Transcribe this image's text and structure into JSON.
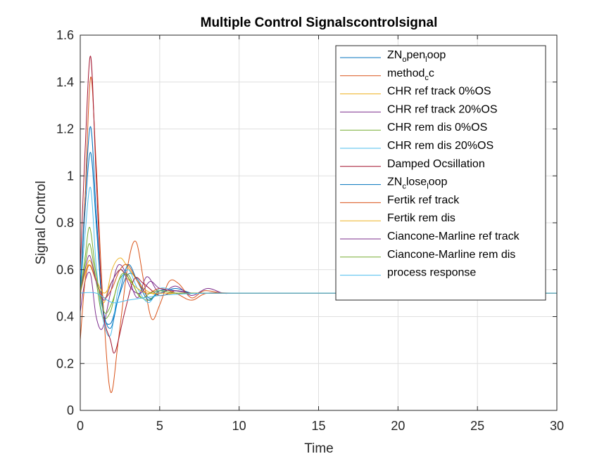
{
  "chart_data": {
    "type": "line",
    "title": "Multiple Control Signalscontrolsignal",
    "xlabel": "Time",
    "ylabel": "Signal Control",
    "xlim": [
      0,
      30
    ],
    "ylim": [
      0,
      1.6
    ],
    "xticks": [
      0,
      5,
      10,
      15,
      20,
      25,
      30
    ],
    "xtick_labels": [
      "0",
      "5",
      "10",
      "15",
      "20",
      "25",
      "30"
    ],
    "yticks": [
      0,
      0.2,
      0.4,
      0.6,
      0.8,
      1.0,
      1.2,
      1.4,
      1.6
    ],
    "ytick_labels": [
      "0",
      "0.2",
      "0.4",
      "0.6",
      "0.8",
      "1",
      "1.2",
      "1.4",
      "1.6"
    ],
    "grid": true,
    "legend_position": "top-right",
    "series": [
      {
        "name": "ZN_open_loop",
        "legend": {
          "main": "ZN",
          "sub1": "o",
          "mid": "pen",
          "sub2": "l",
          "tail": "oop"
        },
        "color": "#0072BD",
        "x": [
          0,
          0.3,
          0.65,
          1.0,
          1.4,
          1.9,
          2.4,
          3.0,
          3.6,
          4.3,
          5.0,
          6.0,
          7.0,
          8.0,
          10,
          15,
          30
        ],
        "y": [
          0.5,
          0.9,
          1.21,
          0.85,
          0.44,
          0.37,
          0.48,
          0.58,
          0.56,
          0.48,
          0.5,
          0.52,
          0.5,
          0.5,
          0.5,
          0.5,
          0.5
        ]
      },
      {
        "name": "method_cc",
        "legend": {
          "main": "method",
          "sub1": "c",
          "mid": "c",
          "sub2": "",
          "tail": ""
        },
        "color": "#D95319",
        "x": [
          0,
          0.3,
          0.65,
          1.0,
          1.4,
          1.9,
          2.4,
          3.0,
          3.5,
          4.0,
          4.5,
          5.0,
          5.6,
          6.2,
          7.0,
          7.8,
          9,
          10,
          15,
          30
        ],
        "y": [
          0.45,
          0.9,
          1.42,
          1.05,
          0.5,
          0.08,
          0.3,
          0.62,
          0.72,
          0.55,
          0.39,
          0.45,
          0.55,
          0.54,
          0.48,
          0.51,
          0.5,
          0.5,
          0.5,
          0.5
        ]
      },
      {
        "name": "CHR ref track 0%OS",
        "color": "#EDB120",
        "x": [
          0,
          0.5,
          1.0,
          1.5,
          2.0,
          2.5,
          3.0,
          4.0,
          5.0,
          6.0,
          8.0,
          10,
          15,
          30
        ],
        "y": [
          0.5,
          0.62,
          0.55,
          0.46,
          0.6,
          0.65,
          0.61,
          0.52,
          0.49,
          0.5,
          0.5,
          0.5,
          0.5,
          0.5
        ]
      },
      {
        "name": "CHR ref track 20%OS",
        "color": "#7E2F8E",
        "x": [
          0,
          0.3,
          0.65,
          1.0,
          1.4,
          1.9,
          2.4,
          3.0,
          3.6,
          4.2,
          5.0,
          6.0,
          7.0,
          8.0,
          9.0,
          10,
          15,
          30
        ],
        "y": [
          0.42,
          0.55,
          0.58,
          0.4,
          0.35,
          0.5,
          0.62,
          0.57,
          0.48,
          0.57,
          0.5,
          0.53,
          0.49,
          0.52,
          0.5,
          0.5,
          0.5,
          0.5
        ]
      },
      {
        "name": "CHR rem dis 0%OS",
        "color": "#77AC30",
        "x": [
          0,
          0.3,
          0.6,
          1.0,
          1.4,
          1.9,
          2.4,
          3.0,
          3.6,
          4.3,
          5.0,
          6.0,
          7.0,
          8.0,
          10,
          15,
          30
        ],
        "y": [
          0.5,
          0.62,
          0.71,
          0.55,
          0.4,
          0.42,
          0.55,
          0.58,
          0.5,
          0.47,
          0.51,
          0.51,
          0.5,
          0.5,
          0.5,
          0.5,
          0.5
        ]
      },
      {
        "name": "CHR rem dis 20%OS",
        "color": "#4DBEEE",
        "x": [
          0,
          0.3,
          0.65,
          1.0,
          1.4,
          1.9,
          2.4,
          3.0,
          3.6,
          4.3,
          5.0,
          6.0,
          7.0,
          8.0,
          10,
          15,
          30
        ],
        "y": [
          0.5,
          0.75,
          0.95,
          0.62,
          0.4,
          0.32,
          0.52,
          0.6,
          0.52,
          0.46,
          0.52,
          0.51,
          0.5,
          0.5,
          0.5,
          0.5,
          0.5
        ]
      },
      {
        "name": "Damped Ocsillation",
        "color": "#A2142F",
        "x": [
          0,
          0.3,
          0.65,
          1.0,
          1.4,
          1.9,
          2.2,
          2.8,
          3.4,
          4.0,
          5.0,
          6.0,
          7.0,
          8.0,
          10,
          15,
          30
        ],
        "y": [
          0.6,
          1.1,
          1.51,
          1.0,
          0.45,
          0.3,
          0.25,
          0.42,
          0.56,
          0.54,
          0.49,
          0.51,
          0.5,
          0.5,
          0.5,
          0.5,
          0.5
        ]
      },
      {
        "name": "ZN_close_loop",
        "legend": {
          "main": "ZN",
          "sub1": "c",
          "mid": "lose",
          "sub2": "l",
          "tail": "oop"
        },
        "color": "#0072BD",
        "x": [
          0,
          0.3,
          0.65,
          1.0,
          1.4,
          1.9,
          2.4,
          3.0,
          3.6,
          4.3,
          5.0,
          6.0,
          7.0,
          8.0,
          10,
          15,
          30
        ],
        "y": [
          0.5,
          0.85,
          1.1,
          0.8,
          0.45,
          0.35,
          0.48,
          0.62,
          0.55,
          0.47,
          0.51,
          0.51,
          0.5,
          0.5,
          0.5,
          0.5,
          0.5
        ]
      },
      {
        "name": "Fertik ref track",
        "color": "#D95319",
        "x": [
          0,
          0.3,
          0.6,
          1.0,
          1.5,
          2.0,
          2.5,
          3.0,
          3.6,
          4.2,
          5.0,
          6.0,
          7.0,
          8.0,
          10,
          15,
          30
        ],
        "y": [
          0.3,
          0.55,
          0.62,
          0.55,
          0.48,
          0.52,
          0.6,
          0.62,
          0.55,
          0.5,
          0.52,
          0.5,
          0.47,
          0.5,
          0.5,
          0.5,
          0.5
        ]
      },
      {
        "name": "Fertik rem dis",
        "color": "#EDB120",
        "x": [
          0,
          0.3,
          0.6,
          1.0,
          1.5,
          2.0,
          2.5,
          3.0,
          3.6,
          4.2,
          5.0,
          6.0,
          7.0,
          8.0,
          10,
          15,
          30
        ],
        "y": [
          0.5,
          0.58,
          0.64,
          0.56,
          0.5,
          0.55,
          0.6,
          0.56,
          0.52,
          0.5,
          0.5,
          0.5,
          0.5,
          0.5,
          0.5,
          0.5,
          0.5
        ]
      },
      {
        "name": "Ciancone-Marline ref track",
        "color": "#7E2F8E",
        "x": [
          0,
          0.3,
          0.6,
          1.0,
          1.5,
          2.0,
          2.6,
          3.2,
          3.8,
          4.4,
          5.0,
          6.0,
          7.0,
          8.0,
          10,
          15,
          30
        ],
        "y": [
          0.5,
          0.6,
          0.66,
          0.55,
          0.47,
          0.55,
          0.6,
          0.52,
          0.5,
          0.55,
          0.52,
          0.51,
          0.5,
          0.5,
          0.5,
          0.5,
          0.5
        ]
      },
      {
        "name": "Ciancone-Marline rem dis",
        "color": "#77AC30",
        "x": [
          0,
          0.3,
          0.6,
          1.0,
          1.5,
          2.0,
          2.6,
          3.2,
          3.8,
          4.4,
          5.0,
          6.0,
          7.0,
          8.0,
          10,
          15,
          30
        ],
        "y": [
          0.5,
          0.65,
          0.78,
          0.58,
          0.42,
          0.46,
          0.58,
          0.55,
          0.48,
          0.5,
          0.51,
          0.5,
          0.5,
          0.5,
          0.5,
          0.5,
          0.5
        ]
      },
      {
        "name": "process response",
        "color": "#4DBEEE",
        "x": [
          0,
          1.0,
          2.0,
          3.0,
          4.0,
          5.0,
          6.0,
          8.0,
          10,
          12,
          15,
          20,
          30
        ],
        "y": [
          0.5,
          0.5,
          0.46,
          0.47,
          0.48,
          0.49,
          0.495,
          0.5,
          0.5,
          0.5,
          0.5,
          0.5,
          0.5
        ]
      }
    ]
  }
}
